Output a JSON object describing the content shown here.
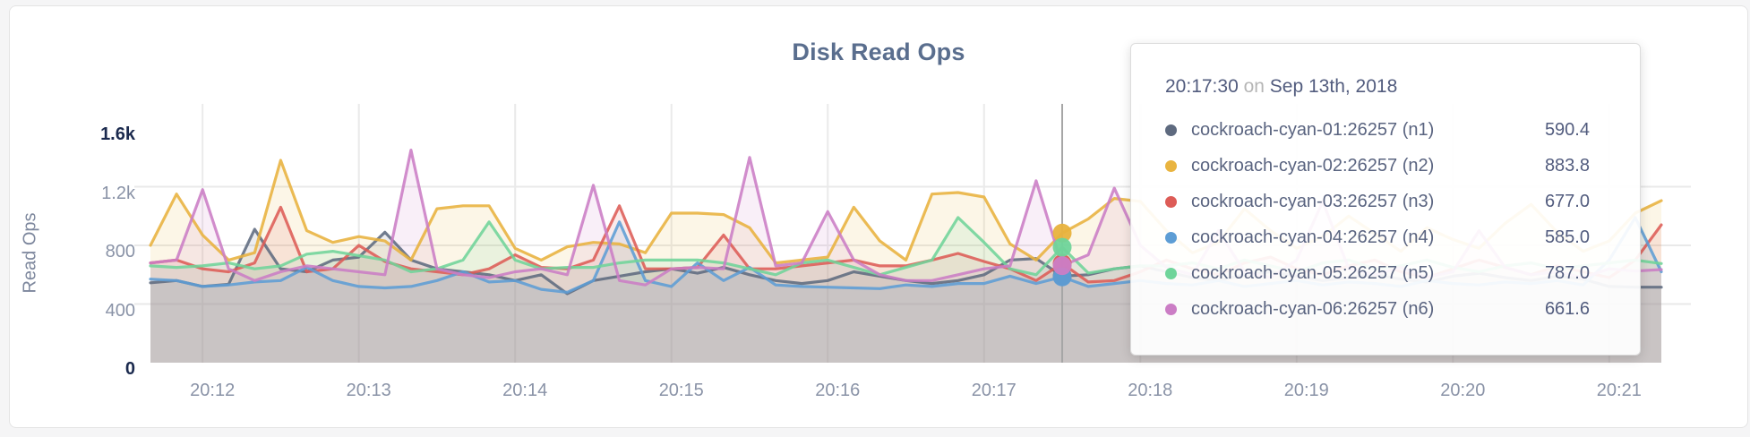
{
  "page": {
    "background": "#f5f5f6",
    "card_background": "#ffffff"
  },
  "chart_data": {
    "type": "line",
    "title": "Disk Read Ops",
    "ylabel": "Read Ops",
    "xlabel": "",
    "ylim": [
      0,
      1600
    ],
    "grid": true,
    "legend_position": "tooltip",
    "y_ticks": [
      {
        "value": 0,
        "label": "0",
        "emphasis": true
      },
      {
        "value": 400,
        "label": "400",
        "emphasis": false
      },
      {
        "value": 800,
        "label": "800",
        "emphasis": false
      },
      {
        "value": 1200,
        "label": "1.2k",
        "emphasis": false
      },
      {
        "value": 1600,
        "label": "1.6k",
        "emphasis": true
      }
    ],
    "x_ticks": [
      {
        "index": 2,
        "label": "20:12"
      },
      {
        "index": 8,
        "label": "20:13"
      },
      {
        "index": 14,
        "label": "20:14"
      },
      {
        "index": 20,
        "label": "20:15"
      },
      {
        "index": 26,
        "label": "20:16"
      },
      {
        "index": 32,
        "label": "20:17"
      },
      {
        "index": 38,
        "label": "20:18"
      },
      {
        "index": 44,
        "label": "20:19"
      },
      {
        "index": 50,
        "label": "20:20"
      },
      {
        "index": 56,
        "label": "20:21"
      }
    ],
    "x": [
      "20:11:40",
      "20:11:50",
      "20:12:00",
      "20:12:10",
      "20:12:20",
      "20:12:30",
      "20:12:40",
      "20:12:50",
      "20:13:00",
      "20:13:10",
      "20:13:20",
      "20:13:30",
      "20:13:40",
      "20:13:50",
      "20:14:00",
      "20:14:10",
      "20:14:20",
      "20:14:30",
      "20:14:40",
      "20:14:50",
      "20:15:00",
      "20:15:10",
      "20:15:20",
      "20:15:30",
      "20:15:40",
      "20:15:50",
      "20:16:00",
      "20:16:10",
      "20:16:20",
      "20:16:30",
      "20:16:40",
      "20:16:50",
      "20:17:00",
      "20:17:10",
      "20:17:20",
      "20:17:30",
      "20:17:40",
      "20:17:50",
      "20:18:00",
      "20:18:10",
      "20:18:20",
      "20:18:30",
      "20:18:40",
      "20:18:50",
      "20:19:00",
      "20:19:10",
      "20:19:20",
      "20:19:30",
      "20:19:40",
      "20:19:50",
      "20:20:00",
      "20:20:10",
      "20:20:20",
      "20:20:30",
      "20:20:40",
      "20:20:50",
      "20:21:00",
      "20:21:10",
      "20:21:20"
    ],
    "series": [
      {
        "name": "cockroach-cyan-01:26257 (n1)",
        "color": "#5f6b80",
        "values": [
          545,
          560,
          520,
          535,
          910,
          640,
          620,
          700,
          720,
          890,
          700,
          640,
          620,
          600,
          560,
          600,
          470,
          560,
          590,
          620,
          640,
          610,
          650,
          600,
          560,
          540,
          560,
          620,
          590,
          560,
          540,
          560,
          600,
          700,
          710,
          590.4,
          600,
          640,
          660,
          620,
          580,
          560,
          600,
          620,
          590,
          560,
          580,
          600,
          570,
          550,
          590,
          610,
          580,
          560,
          590,
          570,
          520,
          515,
          515
        ]
      },
      {
        "name": "cockroach-cyan-02:26257 (n2)",
        "color": "#e8b23d",
        "values": [
          800,
          1150,
          870,
          700,
          750,
          1380,
          900,
          820,
          860,
          830,
          700,
          1050,
          1070,
          1070,
          780,
          700,
          790,
          820,
          810,
          750,
          1020,
          1020,
          1010,
          920,
          680,
          700,
          720,
          1060,
          830,
          700,
          1150,
          1160,
          1130,
          810,
          700,
          883.8,
          980,
          1120,
          1100,
          900,
          750,
          820,
          1050,
          900,
          780,
          860,
          1000,
          880,
          760,
          920,
          840,
          780,
          950,
          1080,
          890,
          760,
          830,
          1020,
          1105
        ]
      },
      {
        "name": "cockroach-cyan-03:26257 (n3)",
        "color": "#dd5c57",
        "values": [
          680,
          700,
          640,
          620,
          680,
          1060,
          620,
          640,
          800,
          690,
          640,
          620,
          600,
          640,
          735,
          650,
          640,
          700,
          1070,
          640,
          640,
          650,
          870,
          640,
          640,
          660,
          680,
          700,
          660,
          660,
          700,
          745,
          690,
          640,
          560,
          677.0,
          550,
          560,
          620,
          700,
          640,
          600,
          680,
          720,
          640,
          600,
          660,
          700,
          620,
          580,
          640,
          700,
          650,
          600,
          660,
          620,
          580,
          700,
          940
        ]
      },
      {
        "name": "cockroach-cyan-04:26257 (n4)",
        "color": "#5d9dd5",
        "values": [
          570,
          560,
          520,
          530,
          550,
          560,
          650,
          560,
          520,
          510,
          520,
          560,
          620,
          550,
          560,
          500,
          480,
          560,
          960,
          560,
          520,
          680,
          560,
          650,
          530,
          520,
          515,
          510,
          505,
          530,
          520,
          540,
          540,
          590,
          540,
          585.0,
          520,
          540,
          560,
          540,
          530,
          560,
          520,
          540,
          560,
          530,
          550,
          540,
          520,
          560,
          540,
          530,
          550,
          540,
          560,
          530,
          700,
          990,
          620
        ]
      },
      {
        "name": "cockroach-cyan-05:26257 (n5)",
        "color": "#6fd49a",
        "values": [
          660,
          650,
          660,
          680,
          640,
          660,
          740,
          760,
          730,
          700,
          620,
          640,
          700,
          960,
          700,
          640,
          650,
          650,
          680,
          700,
          700,
          700,
          680,
          640,
          600,
          680,
          700,
          650,
          600,
          650,
          700,
          990,
          820,
          640,
          600,
          787.0,
          611,
          640,
          660,
          660,
          680,
          640,
          700,
          660,
          620,
          680,
          700,
          640,
          660,
          700,
          650,
          620,
          660,
          680,
          640,
          660,
          680,
          700,
          676
        ]
      },
      {
        "name": "cockroach-cyan-06:26257 (n6)",
        "color": "#cb7dc5",
        "values": [
          680,
          700,
          1180,
          640,
          560,
          620,
          660,
          640,
          620,
          600,
          1450,
          640,
          600,
          580,
          620,
          640,
          600,
          1210,
          560,
          530,
          640,
          650,
          640,
          1400,
          660,
          680,
          1030,
          700,
          600,
          560,
          560,
          600,
          640,
          660,
          1240,
          661.6,
          735,
          1190,
          800,
          650,
          600,
          900,
          620,
          580,
          700,
          1100,
          640,
          600,
          650,
          580,
          620,
          900,
          650,
          600,
          620,
          580,
          640,
          625,
          635
        ]
      }
    ]
  },
  "tooltip": {
    "time": "20:17:30",
    "conjunction": "on",
    "date": "Sep 13th, 2018",
    "hover_index": 35,
    "rows": [
      {
        "series": "cockroach-cyan-01:26257 (n1)",
        "value": "590.4",
        "color": "#5e6a7f"
      },
      {
        "series": "cockroach-cyan-02:26257 (n2)",
        "value": "883.8",
        "color": "#e9b440"
      },
      {
        "series": "cockroach-cyan-03:26257 (n3)",
        "value": "677.0",
        "color": "#dd5c57"
      },
      {
        "series": "cockroach-cyan-04:26257 (n4)",
        "value": "585.0",
        "color": "#5d9dd5"
      },
      {
        "series": "cockroach-cyan-05:26257 (n5)",
        "value": "787.0",
        "color": "#6fd49a"
      },
      {
        "series": "cockroach-cyan-06:26257 (n6)",
        "value": "661.6",
        "color": "#cb7dc5"
      }
    ]
  }
}
